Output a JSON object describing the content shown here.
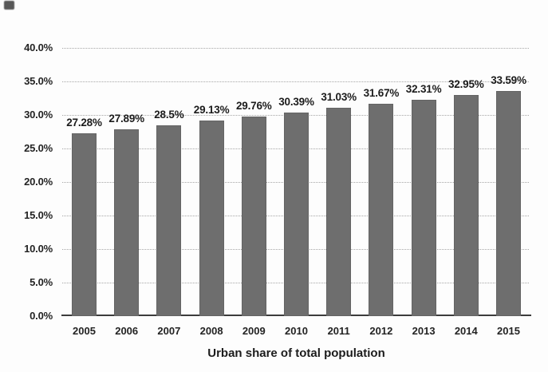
{
  "chart_data": {
    "type": "bar",
    "categories": [
      "2005",
      "2006",
      "2007",
      "2008",
      "2009",
      "2010",
      "2011",
      "2012",
      "2013",
      "2014",
      "2015"
    ],
    "values": [
      27.28,
      27.89,
      28.5,
      29.13,
      29.76,
      30.39,
      31.03,
      31.67,
      32.31,
      32.95,
      33.59
    ],
    "value_labels": [
      "27.28%",
      "27.89%",
      "28.5%",
      "29.13%",
      "29.76%",
      "30.39%",
      "31.03%",
      "31.67%",
      "32.31%",
      "32.95%",
      "33.59%"
    ],
    "title": "",
    "xlabel": "Urban share of total population",
    "ylabel": "",
    "ylim": [
      0,
      40
    ],
    "ytick_step": 5,
    "ytick_labels": [
      "0.0%",
      "5.0%",
      "10.0%",
      "15.0%",
      "20.0%",
      "25.0%",
      "30.0%",
      "35.0%",
      "40.0%"
    ],
    "grid": "horizontal-dotted",
    "legend": "none",
    "bar_color": "#6e6e6e",
    "grid_color": "#a6a6a6",
    "axis_color": "#3c3c3c",
    "text_color": "#1f1f1f"
  }
}
